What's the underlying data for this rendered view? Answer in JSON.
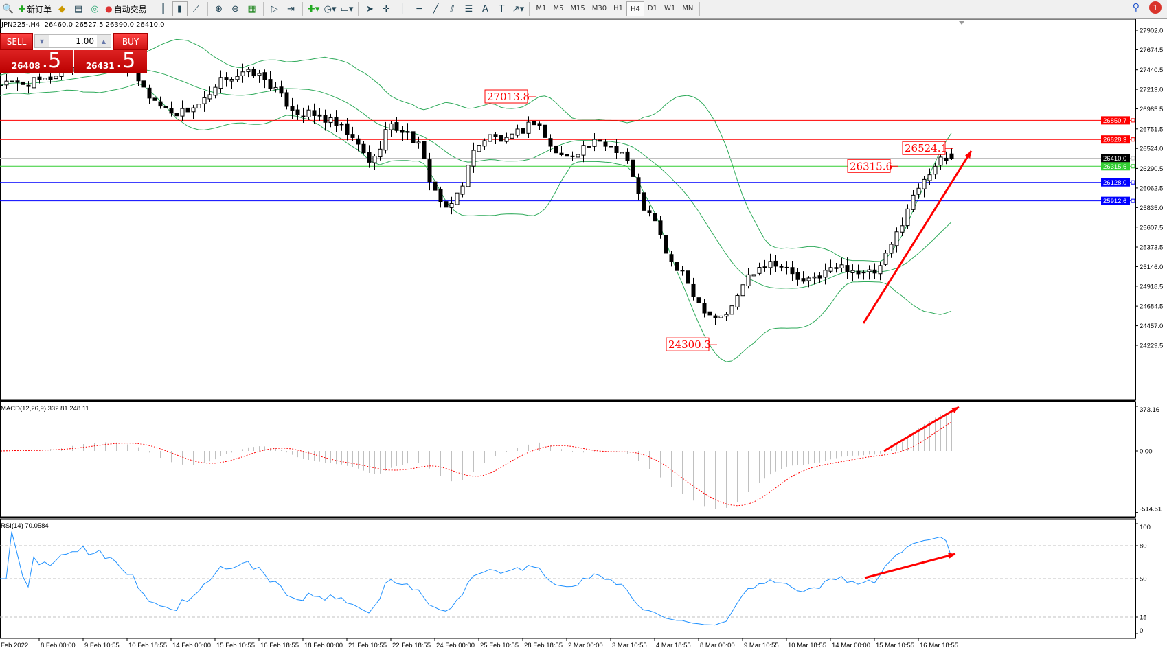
{
  "toolbar": {
    "new_order": "新订单",
    "auto_trading": "自动交易",
    "timeframes": [
      "M1",
      "M5",
      "M15",
      "M30",
      "H1",
      "H4",
      "D1",
      "W1",
      "MN"
    ],
    "active_timeframe": "H4",
    "notification_count": "1"
  },
  "chart_header": {
    "symbol_line": "JPN225-,H4  26460.0 26527.5 26390.0 26410.0"
  },
  "trade_panel": {
    "sell_label": "SELL",
    "buy_label": "BUY",
    "lot": "1.00",
    "sell_price_main": "26408",
    "sell_price_frac": ".5",
    "buy_price_main": "26431",
    "buy_price_frac": ".5",
    "color": "#cc1111"
  },
  "chart_data": {
    "type": "candlestick",
    "symbol": "JPN225-",
    "timeframe": "H4",
    "last_ohlc": {
      "open": 26460.0,
      "high": 26527.5,
      "low": 26390.0,
      "close": 26410.0
    },
    "close_keypoints": [
      27276,
      27276,
      27290,
      27314,
      27415,
      27490,
      27540,
      27590,
      27540,
      27370,
      27140,
      26987,
      26937,
      27010,
      27100,
      27351,
      27376,
      27410,
      27300,
      27090,
      26937,
      26912,
      26850,
      26748,
      26560,
      26334,
      26786,
      26740,
      26600,
      26100,
      25768,
      26100,
      26580,
      26670,
      26600,
      26730,
      26861,
      26522,
      26409,
      26530,
      26585,
      26560,
      26460,
      25894,
      25650,
      25200,
      25013,
      24700,
      24561,
      24610,
      24990,
      25164,
      25214,
      25089,
      24940,
      25050,
      25127,
      25140,
      25050,
      25089,
      25440,
      25843,
      26180,
      26360,
      26410
    ],
    "price_axis_ticks": [
      "27902.0",
      "27674.5",
      "27440.5",
      "27213.0",
      "26985.5",
      "26751.5",
      "26524.0",
      "26290.5",
      "26062.5",
      "25835.0",
      "25607.5",
      "25373.5",
      "25146.0",
      "24918.5",
      "24684.5",
      "24457.0",
      "24229.5"
    ],
    "price_range": [
      24229.5,
      27902.0
    ],
    "time_axis_labels": [
      "Feb 2022",
      "8 Feb 00:00",
      "9 Feb 10:55",
      "10 Feb 18:55",
      "14 Feb 00:00",
      "15 Feb 10:55",
      "16 Feb 18:55",
      "18 Feb 00:00",
      "21 Feb 10:55",
      "22 Feb 18:55",
      "24 Feb 00:00",
      "25 Feb 10:55",
      "28 Feb 18:55",
      "2 Mar 00:00",
      "3 Mar 10:55",
      "4 Mar 18:55",
      "8 Mar 00:00",
      "9 Mar 10:55",
      "10 Mar 18:55",
      "14 Mar 00:00",
      "15 Mar 10:55",
      "16 Mar 18:55"
    ],
    "horizontal_lines": [
      {
        "price": 26850.7,
        "label": "26850.7",
        "color": "#ff0000"
      },
      {
        "price": 26628.3,
        "label": "26628.3",
        "color": "#ff0000"
      },
      {
        "price": 26410.0,
        "label": "26410.0",
        "color": "#c0c0c0",
        "label_bg": "#000000"
      },
      {
        "price": 26315.6,
        "label": "26315.6",
        "color": "#32cd32"
      },
      {
        "price": 26128.0,
        "label": "26128.0",
        "color": "#0000ff"
      },
      {
        "price": 25912.6,
        "label": "25912.6",
        "color": "#0000ff"
      }
    ],
    "price_annotations": [
      {
        "label": "27013.8",
        "price": 27013.8
      },
      {
        "label": "24300.3",
        "price": 24300.3
      },
      {
        "label": "26315.6",
        "price": 26315.6
      },
      {
        "label": "26524.1",
        "price": 26524.1
      }
    ],
    "bollinger_color": "#2eaa5a",
    "annotation_color": "#ff0000",
    "macd": {
      "label": "MACD(12,26,9) 332.81 248.11",
      "ticks": [
        "373.16",
        "0.00",
        "-514.51"
      ],
      "range": [
        -514.51,
        373.16
      ],
      "histogram_color": "#c0c0c0",
      "signal_color": "#ff0000"
    },
    "rsi": {
      "label": "RSI(14) 70.0584",
      "ticks": [
        "100",
        "80",
        "50",
        "15",
        "0"
      ],
      "levels": [
        80,
        50,
        15
      ],
      "range": [
        0,
        100
      ],
      "line_color": "#1e90ff"
    }
  }
}
